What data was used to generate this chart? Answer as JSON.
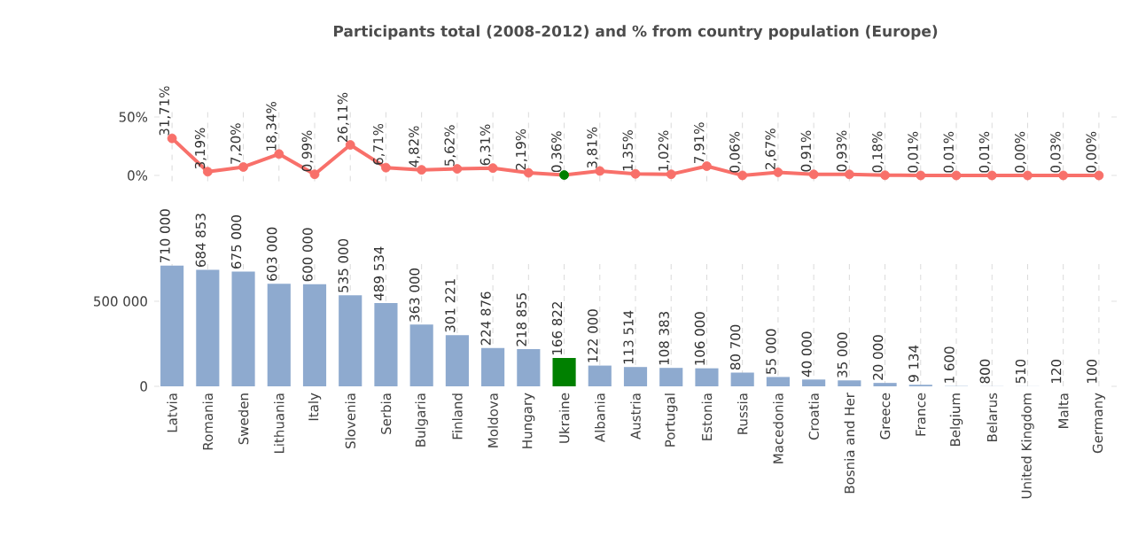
{
  "chart_data": [
    {
      "type": "line",
      "title": "Participants total (2008-2012) and % from country population (Europe)",
      "values": [
        31.71,
        3.19,
        7.2,
        18.34,
        0.99,
        26.11,
        6.71,
        4.82,
        5.62,
        6.31,
        2.19,
        0.36,
        3.81,
        1.35,
        1.02,
        7.91,
        0.06,
        2.67,
        0.91,
        0.93,
        0.18,
        0.01,
        0.01,
        0.01,
        0.0,
        0.03,
        0.0
      ],
      "value_labels": [
        "31,71%",
        "3,19%",
        "7,20%",
        "18,34%",
        "0,99%",
        "26,11%",
        "6,71%",
        "4,82%",
        "5,62%",
        "6,31%",
        "2,19%",
        "0,36%",
        "3,81%",
        "1,35%",
        "1,02%",
        "7,91%",
        "0,06%",
        "2,67%",
        "0,91%",
        "0,93%",
        "0,18%",
        "0,01%",
        "0,01%",
        "0,01%",
        "0,00%",
        "0,03%",
        "0,00%"
      ],
      "color": "#f8706a",
      "colors": [
        "#f8706a",
        "#f8706a",
        "#f8706a",
        "#f8706a",
        "#f8706a",
        "#f8706a",
        "#f8706a",
        "#f8706a",
        "#f8706a",
        "#f8706a",
        "#f8706a",
        "#008000",
        "#f8706a",
        "#f8706a",
        "#f8706a",
        "#f8706a",
        "#f8706a",
        "#f8706a",
        "#f8706a",
        "#f8706a",
        "#f8706a",
        "#f8706a",
        "#f8706a",
        "#f8706a",
        "#f8706a",
        "#f8706a",
        "#f8706a"
      ],
      "ylim": [
        -5,
        55
      ],
      "yticks": [
        {
          "value": 0,
          "label": "0%"
        },
        {
          "value": 50,
          "label": "50%"
        }
      ],
      "grid": "x",
      "marker": "circle",
      "tick_labels": "y"
    },
    {
      "type": "bar",
      "categories": [
        "Latvia",
        "Romania",
        "Sweden",
        "Lithuania",
        "Italy",
        "Slovenia",
        "Serbia",
        "Bulgaria",
        "Finland",
        "Moldova",
        "Hungary",
        "Ukraine",
        "Albania",
        "Austria",
        "Portugal",
        "Estonia",
        "Russia",
        "Macedonia",
        "Croatia",
        "Bosnia and Her",
        "Greece",
        "France",
        "Belgium",
        "Belarus",
        "United Kingdom",
        "Malta",
        "Germany"
      ],
      "values": [
        710000,
        684853,
        675000,
        603000,
        600000,
        535000,
        489534,
        363000,
        301221,
        224876,
        218855,
        166822,
        122000,
        113514,
        108383,
        106000,
        80700,
        55000,
        40000,
        35000,
        20000,
        9134,
        1600,
        800,
        510,
        120,
        100
      ],
      "value_labels": [
        "710 000",
        "684 853",
        "675 000",
        "603 000",
        "600 000",
        "535 000",
        "489 534",
        "363 000",
        "301 221",
        "224 876",
        "218 855",
        "166 822",
        "122 000",
        "113 514",
        "108 383",
        "106 000",
        "80 700",
        "55 000",
        "40 000",
        "35 000",
        "20 000",
        "9 134",
        "1 600",
        "800",
        "510",
        "120",
        "100"
      ],
      "colors": [
        "#8eaacf",
        "#8eaacf",
        "#8eaacf",
        "#8eaacf",
        "#8eaacf",
        "#8eaacf",
        "#8eaacf",
        "#8eaacf",
        "#8eaacf",
        "#8eaacf",
        "#8eaacf",
        "#008000",
        "#8eaacf",
        "#8eaacf",
        "#8eaacf",
        "#8eaacf",
        "#8eaacf",
        "#8eaacf",
        "#8eaacf",
        "#8eaacf",
        "#8eaacf",
        "#8eaacf",
        "#8eaacf",
        "#8eaacf",
        "#8eaacf",
        "#8eaacf",
        "#8eaacf"
      ],
      "ylim": [
        0,
        750000
      ],
      "yticks": [
        0,
        {
          "value": 500000,
          "label": "500 000"
        }
      ],
      "grid": "x"
    }
  ]
}
